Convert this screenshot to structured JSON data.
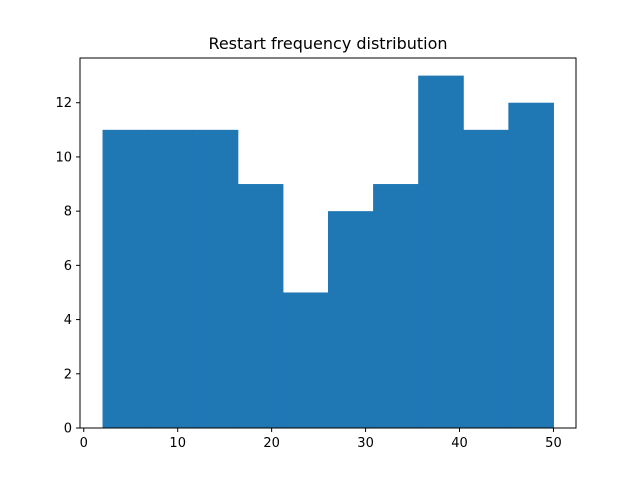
{
  "chart_data": {
    "type": "bar",
    "title": "Restart frequency distribution",
    "xlabel": "",
    "ylabel": "",
    "bins": [
      {
        "x0": 2.0,
        "x1": 6.8,
        "count": 11
      },
      {
        "x0": 6.8,
        "x1": 11.6,
        "count": 11
      },
      {
        "x0": 11.6,
        "x1": 16.4,
        "count": 11
      },
      {
        "x0": 16.4,
        "x1": 21.2,
        "count": 9
      },
      {
        "x0": 21.2,
        "x1": 26.0,
        "count": 5
      },
      {
        "x0": 26.0,
        "x1": 30.8,
        "count": 8
      },
      {
        "x0": 30.8,
        "x1": 35.6,
        "count": 9
      },
      {
        "x0": 35.6,
        "x1": 40.4,
        "count": 13
      },
      {
        "x0": 40.4,
        "x1": 45.2,
        "count": 11
      },
      {
        "x0": 45.2,
        "x1": 50.0,
        "count": 12
      }
    ],
    "xlim": [
      -0.4,
      52.4
    ],
    "ylim": [
      0,
      13.65
    ],
    "xticks": [
      0,
      10,
      20,
      30,
      40,
      50
    ],
    "yticks": [
      0,
      2,
      4,
      6,
      8,
      10,
      12
    ],
    "bar_color": "#1f77b4",
    "grid": false
  }
}
